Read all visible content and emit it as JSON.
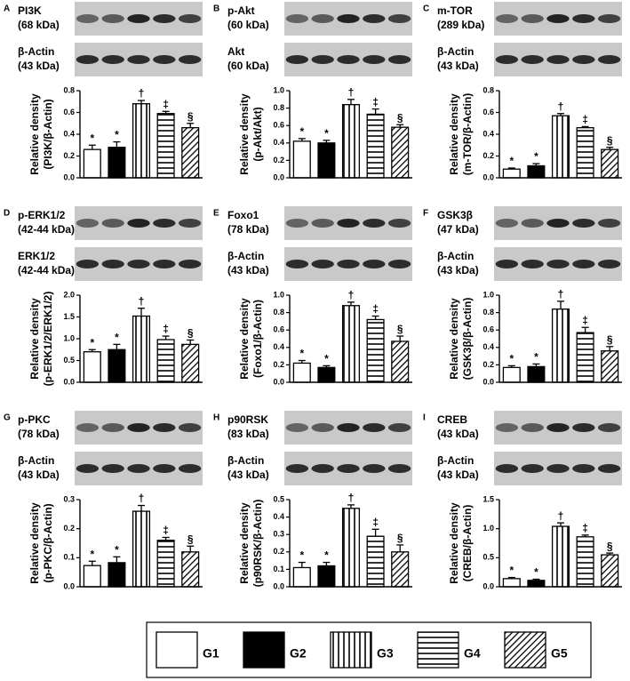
{
  "chart_data": [
    {
      "type": "bar",
      "panel": "A",
      "blots": [
        [
          "PI3K",
          "(68 kDa)"
        ],
        [
          "β-Actin",
          "(43 kDa)"
        ]
      ],
      "y_label": [
        "Relative density",
        "(PI3K/β-Actin)"
      ],
      "ylim": [
        0,
        0.8
      ],
      "yticks": [
        {
          "value": 0,
          "label": "0.0"
        },
        0.2,
        0.4,
        0.6,
        0.8
      ],
      "values": [
        0.26,
        0.28,
        0.68,
        0.59,
        0.46
      ],
      "errors": [
        0.04,
        0.05,
        0.03,
        0.02,
        0.04
      ],
      "annotations": [
        "*",
        "*",
        "†",
        "‡",
        "§"
      ]
    },
    {
      "type": "bar",
      "panel": "B",
      "blots": [
        [
          "p-Akt",
          "(60 kDa)"
        ],
        [
          "Akt",
          "(60 kDa)"
        ]
      ],
      "y_label": [
        "Relative density",
        "(p-Akt/Akt)"
      ],
      "ylim": [
        0,
        1.0
      ],
      "yticks": [
        {
          "value": 0,
          "label": "0.0"
        },
        0.2,
        0.4,
        0.6,
        0.8,
        {
          "value": 1.0,
          "label": "1.0"
        }
      ],
      "values": [
        0.42,
        0.4,
        0.84,
        0.73,
        0.58
      ],
      "errors": [
        0.03,
        0.03,
        0.06,
        0.06,
        0.03
      ],
      "annotations": [
        "*",
        "*",
        "†",
        "‡",
        "§"
      ]
    },
    {
      "type": "bar",
      "panel": "C",
      "blots": [
        [
          "m-TOR",
          "(289 kDa)"
        ],
        [
          "β-Actin",
          "(43 kDa)"
        ]
      ],
      "y_label": [
        "Relative density",
        "(m-TOR/β-Actin)"
      ],
      "ylim": [
        0,
        0.8
      ],
      "yticks": [
        {
          "value": 0,
          "label": "0.0"
        },
        0.2,
        0.4,
        0.6,
        0.8
      ],
      "values": [
        0.08,
        0.11,
        0.57,
        0.46,
        0.26
      ],
      "errors": [
        0.01,
        0.02,
        0.02,
        0.01,
        0.02
      ],
      "annotations": [
        "*",
        "*",
        "†",
        "‡",
        "§"
      ]
    },
    {
      "type": "bar",
      "panel": "D",
      "blots": [
        [
          "p-ERK1/2",
          "(42-44 kDa)"
        ],
        [
          "ERK1/2",
          "(42-44 kDa)"
        ]
      ],
      "y_label": [
        "Relative density",
        "(p-ERK1/2/ERK1/2)"
      ],
      "ylim": [
        0,
        2.0
      ],
      "yticks": [
        {
          "value": 0,
          "label": "0.0"
        },
        0.5,
        {
          "value": 1.0,
          "label": "1.0"
        },
        1.5,
        {
          "value": 2.0,
          "label": "2.0"
        }
      ],
      "values": [
        0.7,
        0.75,
        1.52,
        0.98,
        0.87
      ],
      "errors": [
        0.05,
        0.12,
        0.18,
        0.08,
        0.1
      ],
      "annotations": [
        "*",
        "*",
        "†",
        "‡",
        "§"
      ]
    },
    {
      "type": "bar",
      "panel": "E",
      "blots": [
        [
          "Foxo1",
          "(78 kDa)"
        ],
        [
          "β-Actin",
          "(43 kDa)"
        ]
      ],
      "y_label": [
        "Relative density",
        "(Foxo1/β-Actin)"
      ],
      "ylim": [
        0,
        1.0
      ],
      "yticks": [
        {
          "value": 0,
          "label": "0.0"
        },
        0.2,
        0.4,
        0.6,
        0.8,
        {
          "value": 1.0,
          "label": "1.0"
        }
      ],
      "values": [
        0.22,
        0.17,
        0.88,
        0.72,
        0.47
      ],
      "errors": [
        0.03,
        0.02,
        0.04,
        0.04,
        0.06
      ],
      "annotations": [
        "*",
        "*",
        "†",
        "‡",
        "§"
      ]
    },
    {
      "type": "bar",
      "panel": "F",
      "blots": [
        [
          "GSK3β",
          "(47 kDa)"
        ],
        [
          "β-Actin",
          "(43 kDa)"
        ]
      ],
      "y_label": [
        "Relative density",
        "(GSK3β/β-Actin)"
      ],
      "ylim": [
        0,
        1.0
      ],
      "yticks": [
        {
          "value": 0,
          "label": "0.0"
        },
        0.2,
        0.4,
        0.6,
        0.8,
        {
          "value": 1.0,
          "label": "1.0"
        }
      ],
      "values": [
        0.17,
        0.18,
        0.84,
        0.57,
        0.36
      ],
      "errors": [
        0.02,
        0.03,
        0.09,
        0.06,
        0.05
      ],
      "annotations": [
        "*",
        "*",
        "†",
        "‡",
        "§"
      ]
    },
    {
      "type": "bar",
      "panel": "G",
      "blots": [
        [
          "p-PKC",
          "(78 kDa)"
        ],
        [
          "β-Actin",
          "(43 kDa)"
        ]
      ],
      "y_label": [
        "Relative density",
        "(p-PKC/β-Actin)"
      ],
      "ylim": [
        0,
        0.3
      ],
      "yticks": [
        {
          "value": 0,
          "label": "0.0"
        },
        0.1,
        0.2,
        0.3
      ],
      "values": [
        0.073,
        0.083,
        0.26,
        0.16,
        0.12
      ],
      "errors": [
        0.015,
        0.02,
        0.02,
        0.01,
        0.02
      ],
      "annotations": [
        "*",
        "*",
        "†",
        "‡",
        "§"
      ]
    },
    {
      "type": "bar",
      "panel": "H",
      "blots": [
        [
          "p90RSK",
          "(83 kDa)"
        ],
        [
          "β-Actin",
          "(43 kDa)"
        ]
      ],
      "y_label": [
        "Relative density",
        "(p90RSK/β-Actin)"
      ],
      "ylim": [
        0,
        0.5
      ],
      "yticks": [
        {
          "value": 0,
          "label": "0.0"
        },
        0.1,
        0.2,
        0.3,
        0.4,
        0.5
      ],
      "values": [
        0.11,
        0.12,
        0.45,
        0.29,
        0.2
      ],
      "errors": [
        0.03,
        0.02,
        0.02,
        0.04,
        0.04
      ],
      "annotations": [
        "*",
        "*",
        "†",
        "‡",
        "§"
      ]
    },
    {
      "type": "bar",
      "panel": "I",
      "blots": [
        [
          "CREB",
          "(43 kDa)"
        ],
        [
          "β-Actin",
          "(43 kDa)"
        ]
      ],
      "y_label": [
        "Relative density",
        "(CREB/β-Actin)"
      ],
      "ylim": [
        0,
        1.5
      ],
      "yticks": [
        {
          "value": 0,
          "label": "0.0"
        },
        0.5,
        {
          "value": 1.0,
          "label": "1.0"
        },
        1.5
      ],
      "values": [
        0.14,
        0.11,
        1.04,
        0.86,
        0.55
      ],
      "errors": [
        0.02,
        0.02,
        0.06,
        0.03,
        0.03
      ],
      "annotations": [
        "*",
        "*",
        "†",
        "‡",
        "§"
      ]
    }
  ],
  "legend": {
    "series": [
      {
        "name": "G1",
        "pattern": "white"
      },
      {
        "name": "G2",
        "pattern": "solid"
      },
      {
        "name": "G3",
        "pattern": "vertical"
      },
      {
        "name": "G4",
        "pattern": "horizontal"
      },
      {
        "name": "G5",
        "pattern": "diagonal"
      }
    ]
  }
}
